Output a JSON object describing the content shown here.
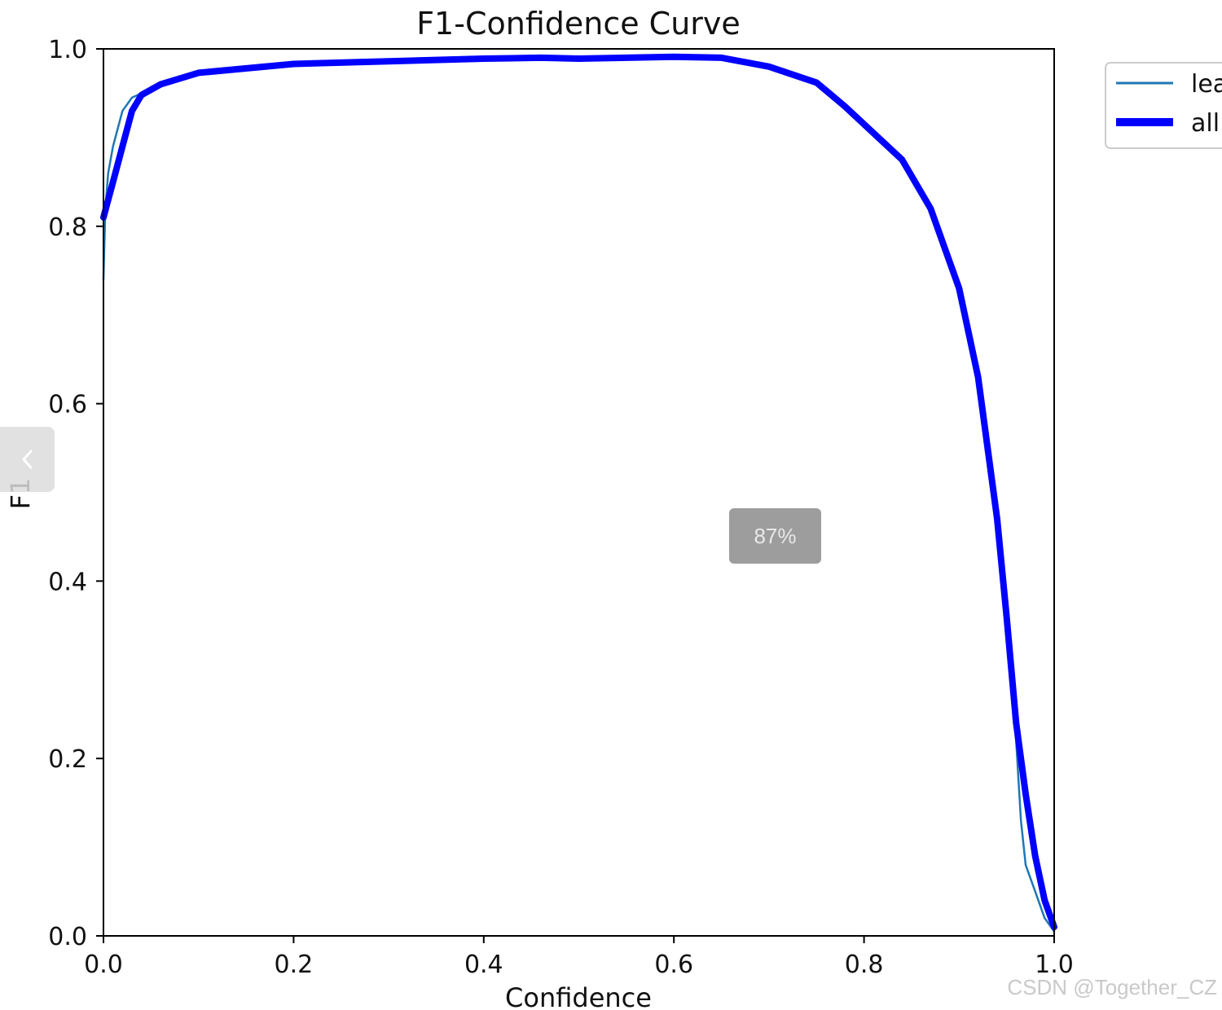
{
  "chart_data": {
    "type": "line",
    "title": "F1-Confidence Curve",
    "xlabel": "Confidence",
    "ylabel": "F1",
    "xlim": [
      0,
      1
    ],
    "ylim": [
      0,
      1
    ],
    "xticks": [
      "0.0",
      "0.2",
      "0.4",
      "0.6",
      "0.8",
      "1.0"
    ],
    "yticks": [
      "0.0",
      "0.2",
      "0.4",
      "0.6",
      "0.8",
      "1.0"
    ],
    "grid": false,
    "legend_position": "outside-right-top",
    "series": [
      {
        "name": "lea",
        "color": "#1f77b4",
        "style": "thin",
        "x": [
          0.0,
          0.002,
          0.005,
          0.01,
          0.015,
          0.02,
          0.03,
          0.04,
          0.06,
          0.1,
          0.2,
          0.3,
          0.4,
          0.46,
          0.5,
          0.6,
          0.65,
          0.7,
          0.75,
          0.78,
          0.8,
          0.84,
          0.87,
          0.9,
          0.92,
          0.94,
          0.95,
          0.96,
          0.965,
          0.97,
          0.98,
          0.99,
          1.0
        ],
        "y": [
          0.74,
          0.82,
          0.86,
          0.89,
          0.91,
          0.93,
          0.945,
          0.95,
          0.96,
          0.973,
          0.983,
          0.986,
          0.989,
          0.99,
          0.989,
          0.991,
          0.99,
          0.98,
          0.962,
          0.935,
          0.915,
          0.875,
          0.82,
          0.73,
          0.63,
          0.47,
          0.34,
          0.22,
          0.13,
          0.08,
          0.05,
          0.02,
          0.005
        ]
      },
      {
        "name": "all",
        "color": "#0000ff",
        "style": "thick",
        "x": [
          0.0,
          0.01,
          0.02,
          0.03,
          0.04,
          0.06,
          0.1,
          0.2,
          0.3,
          0.4,
          0.46,
          0.5,
          0.6,
          0.65,
          0.7,
          0.75,
          0.78,
          0.8,
          0.84,
          0.87,
          0.9,
          0.92,
          0.94,
          0.95,
          0.96,
          0.97,
          0.98,
          0.99,
          1.0
        ],
        "y": [
          0.81,
          0.85,
          0.89,
          0.93,
          0.948,
          0.96,
          0.973,
          0.983,
          0.986,
          0.989,
          0.99,
          0.989,
          0.991,
          0.99,
          0.98,
          0.962,
          0.935,
          0.915,
          0.875,
          0.82,
          0.73,
          0.63,
          0.47,
          0.36,
          0.24,
          0.16,
          0.09,
          0.04,
          0.01
        ]
      }
    ]
  },
  "overlay": {
    "zoom_label": "87%",
    "watermark": "CSDN @Together_CZ"
  },
  "icons": {
    "prev": "chevron-left-icon"
  }
}
